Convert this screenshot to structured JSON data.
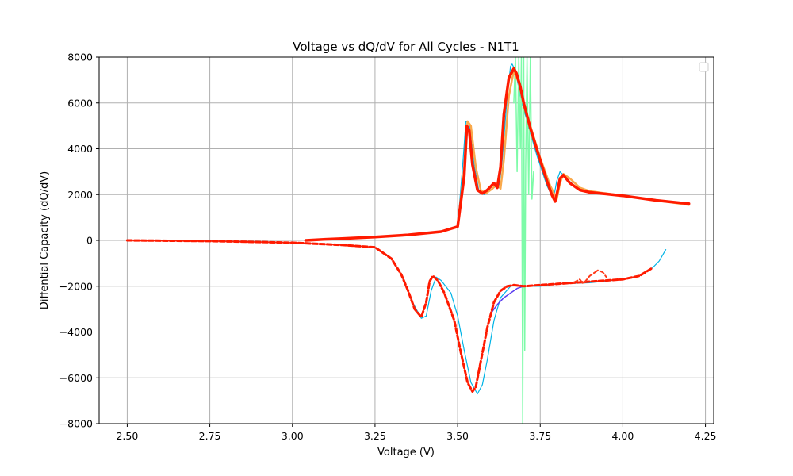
{
  "chart_data": {
    "type": "line",
    "title": "Voltage vs dQ/dV for All Cycles - N1T1",
    "xlabel": "Voltage (V)",
    "ylabel": "Diffential Capacity (dQ/dV)",
    "xlim": [
      2.415,
      4.275
    ],
    "ylim": [
      -8000,
      8000
    ],
    "xticks": [
      2.5,
      2.75,
      3.0,
      3.25,
      3.5,
      3.75,
      4.0,
      4.25
    ],
    "xtick_labels": [
      "2.50",
      "2.75",
      "3.00",
      "3.25",
      "3.50",
      "3.75",
      "4.00",
      "4.25"
    ],
    "yticks": [
      -8000,
      -6000,
      -4000,
      -2000,
      0,
      2000,
      4000,
      6000,
      8000
    ],
    "ytick_labels": [
      "−8000",
      "−6000",
      "−4000",
      "−2000",
      "0",
      "2000",
      "4000",
      "6000",
      "8000"
    ],
    "grid": true,
    "legend": {
      "placement": "top-right",
      "entries": []
    },
    "series": [
      {
        "color": "#00b4e6",
        "style": "solid",
        "width": 1.2,
        "x": [
          3.06,
          3.15,
          3.25,
          3.35,
          3.45,
          3.5,
          3.515,
          3.525,
          3.535,
          3.55,
          3.565,
          3.58,
          3.6,
          3.615,
          3.625,
          3.635,
          3.65,
          3.66,
          3.665,
          3.675,
          3.69,
          3.71,
          3.74,
          3.77,
          3.79,
          3.8,
          3.81,
          3.83,
          3.86,
          3.9,
          4.0,
          4.1,
          4.2
        ],
        "y": [
          0,
          80,
          150,
          240,
          380,
          600,
          3200,
          5200,
          5100,
          3300,
          2100,
          2000,
          2200,
          2350,
          2300,
          3500,
          6300,
          7600,
          7700,
          7400,
          6300,
          5200,
          3700,
          2400,
          1800,
          2600,
          3000,
          2700,
          2300,
          2150,
          1950,
          1750,
          1550
        ]
      },
      {
        "color": "#7dfba8",
        "style": "solid",
        "width": 1.5,
        "x": [
          3.67,
          3.675,
          3.68,
          3.685,
          3.69,
          3.693,
          3.697,
          3.7,
          3.703,
          3.706,
          3.71,
          3.715,
          3.72,
          3.725,
          3.73
        ],
        "y": [
          6000,
          8000,
          3000,
          8000,
          4000,
          8000,
          -8000,
          8000,
          -4800,
          3200,
          8000,
          2000,
          8000,
          1800,
          3000
        ]
      },
      {
        "color": "#f9a94b",
        "style": "solid",
        "width": 2.5,
        "x": [
          3.05,
          3.15,
          3.25,
          3.35,
          3.45,
          3.5,
          3.52,
          3.53,
          3.54,
          3.555,
          3.57,
          3.585,
          3.605,
          3.62,
          3.63,
          3.64,
          3.655,
          3.67,
          3.675,
          3.685,
          3.7,
          3.72,
          3.75,
          3.78,
          3.8,
          3.81,
          3.82,
          3.84,
          3.87,
          3.9,
          4.0,
          4.1,
          4.2
        ],
        "y": [
          0,
          80,
          150,
          240,
          380,
          600,
          3100,
          5200,
          5000,
          3200,
          2200,
          2050,
          2250,
          2500,
          2250,
          3500,
          6300,
          7400,
          7200,
          6900,
          6000,
          5000,
          3600,
          2400,
          1800,
          2500,
          2900,
          2700,
          2300,
          2150,
          1950,
          1750,
          1550
        ]
      },
      {
        "color": "#ff1a00",
        "style": "solid",
        "width": 3.5,
        "x": [
          3.04,
          3.1,
          3.15,
          3.25,
          3.35,
          3.45,
          3.5,
          3.52,
          3.528,
          3.535,
          3.545,
          3.56,
          3.575,
          3.59,
          3.61,
          3.62,
          3.63,
          3.64,
          3.655,
          3.67,
          3.678,
          3.69,
          3.7,
          3.72,
          3.75,
          3.77,
          3.785,
          3.795,
          3.8,
          3.81,
          3.82,
          3.84,
          3.87,
          3.9,
          4.0,
          4.1,
          4.2
        ],
        "y": [
          0,
          50,
          80,
          150,
          240,
          380,
          600,
          2800,
          5000,
          4800,
          3300,
          2200,
          2050,
          2200,
          2500,
          2300,
          3200,
          5500,
          7100,
          7500,
          7300,
          6700,
          6000,
          4900,
          3500,
          2600,
          2000,
          1700,
          2000,
          2700,
          2850,
          2500,
          2200,
          2100,
          1950,
          1750,
          1600
        ]
      },
      {
        "color": "#00b4e6",
        "style": "solid",
        "width": 1.2,
        "x": [
          2.5,
          2.75,
          3.0,
          3.15,
          3.25,
          3.3,
          3.33,
          3.36,
          3.39,
          3.405,
          3.42,
          3.435,
          3.45,
          3.48,
          3.5,
          3.52,
          3.54,
          3.56,
          3.575,
          3.59,
          3.61,
          3.63,
          3.66,
          3.68,
          3.7,
          3.75,
          3.8,
          3.9,
          4.0,
          4.05,
          4.09,
          4.11,
          4.13
        ],
        "y": [
          0,
          -30,
          -100,
          -200,
          -300,
          -800,
          -1500,
          -2600,
          -3400,
          -3300,
          -2200,
          -1600,
          -1750,
          -2300,
          -3300,
          -4800,
          -6200,
          -6700,
          -6300,
          -5200,
          -3500,
          -2500,
          -2000,
          -1950,
          -2000,
          -2000,
          -1900,
          -1850,
          -1700,
          -1550,
          -1200,
          -900,
          -400
        ]
      },
      {
        "color": "#5a3cf0",
        "style": "solid",
        "width": 1.5,
        "x": [
          3.6,
          3.62,
          3.64,
          3.66,
          3.68,
          3.7
        ],
        "y": [
          -3200,
          -2800,
          -2500,
          -2300,
          -2100,
          -2000
        ]
      },
      {
        "color": "#ff1a00",
        "style": "dashed",
        "width": 3.0,
        "x": [
          2.5,
          2.75,
          3.0,
          3.15,
          3.25,
          3.3,
          3.33,
          3.35,
          3.37,
          3.39,
          3.405,
          3.415,
          3.425,
          3.44,
          3.46,
          3.49,
          3.51,
          3.53,
          3.545,
          3.555,
          3.57,
          3.59,
          3.61,
          3.63,
          3.65,
          3.67,
          3.7,
          3.75,
          3.8,
          3.9,
          4.0,
          4.05,
          4.09
        ],
        "y": [
          0,
          -30,
          -100,
          -200,
          -300,
          -800,
          -1500,
          -2200,
          -3000,
          -3350,
          -2700,
          -1800,
          -1550,
          -1750,
          -2300,
          -3500,
          -4900,
          -6200,
          -6600,
          -6400,
          -5300,
          -3800,
          -2700,
          -2200,
          -2000,
          -1950,
          -2000,
          -1950,
          -1900,
          -1800,
          -1700,
          -1550,
          -1200
        ]
      },
      {
        "color": "#ff3a1a",
        "style": "dashed",
        "width": 2.0,
        "x": [
          3.85,
          3.87,
          3.88,
          3.9,
          3.915,
          3.925,
          3.94,
          3.95
        ],
        "y": [
          -1850,
          -1700,
          -1900,
          -1550,
          -1400,
          -1300,
          -1400,
          -1600
        ]
      }
    ]
  }
}
